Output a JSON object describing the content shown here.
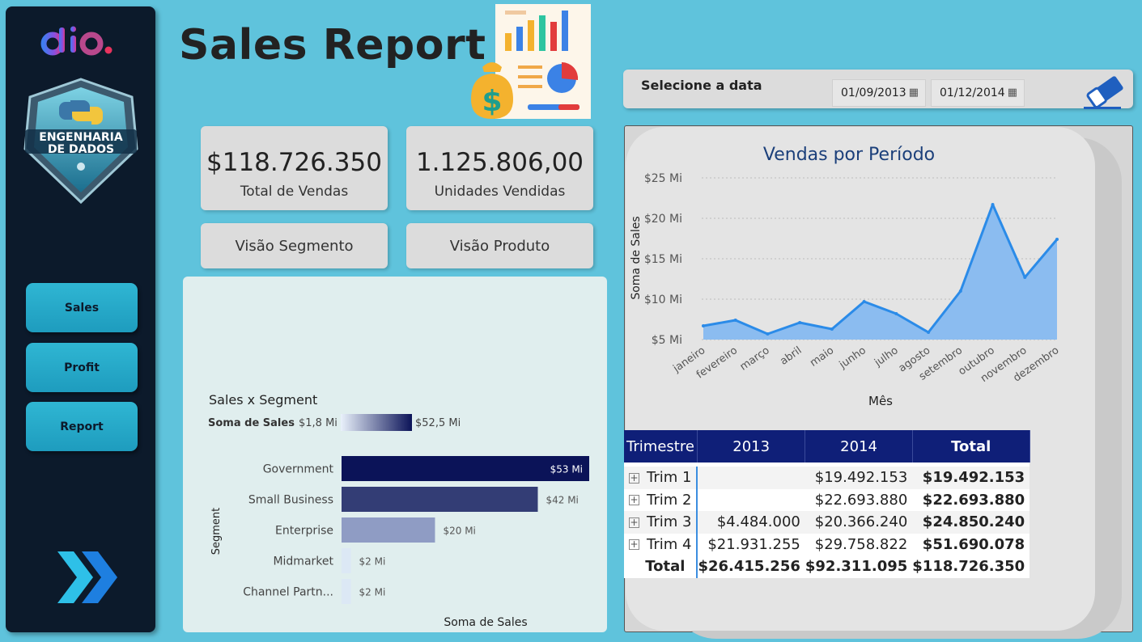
{
  "header": {
    "title": "Sales Report"
  },
  "sidebar": {
    "logo_text": "dio",
    "badge_line1": "ENGENHARIA",
    "badge_line2": "DE DADOS",
    "nav": [
      {
        "label": "Sales"
      },
      {
        "label": "Profit"
      },
      {
        "label": "Report"
      }
    ]
  },
  "kpis": {
    "total_sales": {
      "value": "$118.726.350",
      "label": "Total de Vendas"
    },
    "units_sold": {
      "value": "1.125.806,00",
      "label": "Unidades Vendidas"
    }
  },
  "views": {
    "segment_label": "Visão Segmento",
    "product_label": "Visão Produto"
  },
  "date_filter": {
    "label": "Selecione a data",
    "start": "01/09/2013",
    "end": "01/12/2014"
  },
  "colors": {
    "background": "#5fc3dc",
    "sidebar": "#0c1a2b",
    "line": "#2b8be8",
    "area": "#8bbcf0",
    "table_header": "#0f1f78"
  },
  "chart_data": [
    {
      "type": "bar",
      "orientation": "horizontal",
      "title": "Sales x Segment",
      "legend_title": "Soma de  Sales",
      "legend_min": "$1,8 Mi",
      "legend_max": "$52,5 Mi",
      "xlabel": "Soma de Sales",
      "ylabel": "Segment",
      "categories": [
        "Government",
        "Small Business",
        "Enterprise",
        "Midmarket",
        "Channel Partn..."
      ],
      "values": [
        53,
        42,
        20,
        2,
        2
      ],
      "data_labels": [
        "$53 Mi",
        "$42 Mi",
        "$20 Mi",
        "$2 Mi",
        "$2 Mi"
      ],
      "bar_colors": [
        "#0b1358",
        "#333d75",
        "#8f9cc4",
        "#dce8f5",
        "#dce8f5"
      ],
      "xlim": [
        0,
        53
      ]
    },
    {
      "type": "area",
      "title": "Vendas por Período",
      "xlabel": "Mês",
      "ylabel": "Soma de Sales",
      "categories": [
        "janeiro",
        "fevereiro",
        "março",
        "abril",
        "maio",
        "junho",
        "julho",
        "agosto",
        "setembro",
        "outubro",
        "novembro",
        "dezembro"
      ],
      "values": [
        6.7,
        7.4,
        5.7,
        7.1,
        6.3,
        9.7,
        8.2,
        5.9,
        11.0,
        21.7,
        12.7,
        17.4
      ],
      "ylim": [
        5,
        25
      ],
      "yticks": [
        5,
        10,
        15,
        20,
        25
      ],
      "ytick_labels": [
        "$5 Mi",
        "$10 Mi",
        "$15 Mi",
        "$20 Mi",
        "$25 Mi"
      ]
    },
    {
      "type": "table",
      "columns": [
        "Trimestre",
        "2013",
        "2014",
        "Total"
      ],
      "rows": [
        {
          "label": "Trim 1",
          "c2013": "",
          "c2014": "$19.492.153",
          "total": "$19.492.153"
        },
        {
          "label": "Trim 2",
          "c2013": "",
          "c2014": "$22.693.880",
          "total": "$22.693.880"
        },
        {
          "label": "Trim 3",
          "c2013": "$4.484.000",
          "c2014": "$20.366.240",
          "total": "$24.850.240"
        },
        {
          "label": "Trim 4",
          "c2013": "$21.931.255",
          "c2014": "$29.758.822",
          "total": "$51.690.078"
        }
      ],
      "total_row": {
        "label": "Total",
        "c2013": "$26.415.256",
        "c2014": "$92.311.095",
        "total": "$118.726.350"
      }
    }
  ]
}
